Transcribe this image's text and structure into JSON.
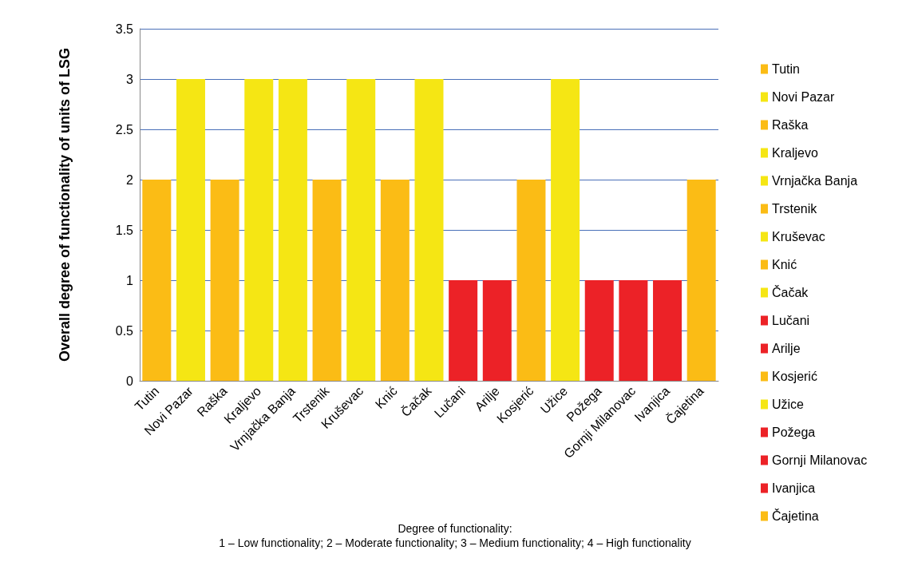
{
  "chart_data": {
    "type": "bar",
    "ylabel": "Overall degree of functionality of units of LSG",
    "categories": [
      "Tutin",
      "Novi Pazar",
      "Raška",
      "Kraljevo",
      "Vrnjačka Banja",
      "Trstenik",
      "Kruševac",
      "Knić",
      "Čačak",
      "Lučani",
      "Arilje",
      "Kosjerić",
      "Užice",
      "Požega",
      "Gornji Milanovac",
      "Ivanjica",
      "Čajetina"
    ],
    "series": [
      {
        "name": "Tutin",
        "color": "#fbbc15",
        "values": [
          2,
          null,
          null,
          null,
          null,
          null,
          null,
          null,
          null,
          null,
          null,
          null,
          null,
          null,
          null,
          null,
          null
        ]
      },
      {
        "name": "Novi Pazar",
        "color": "#f5e614",
        "values": [
          null,
          3,
          null,
          null,
          null,
          null,
          null,
          null,
          null,
          null,
          null,
          null,
          null,
          null,
          null,
          null,
          null
        ]
      },
      {
        "name": "Raška",
        "color": "#fbbc15",
        "values": [
          null,
          null,
          2,
          null,
          null,
          null,
          null,
          null,
          null,
          null,
          null,
          null,
          null,
          null,
          null,
          null,
          null
        ]
      },
      {
        "name": "Kraljevo",
        "color": "#f5e614",
        "values": [
          null,
          null,
          null,
          3,
          null,
          null,
          null,
          null,
          null,
          null,
          null,
          null,
          null,
          null,
          null,
          null,
          null
        ]
      },
      {
        "name": "Vrnjačka Banja",
        "color": "#f5e614",
        "values": [
          null,
          null,
          null,
          null,
          3,
          null,
          null,
          null,
          null,
          null,
          null,
          null,
          null,
          null,
          null,
          null,
          null
        ]
      },
      {
        "name": "Trstenik",
        "color": "#fbbc15",
        "values": [
          null,
          null,
          null,
          null,
          null,
          2,
          null,
          null,
          null,
          null,
          null,
          null,
          null,
          null,
          null,
          null,
          null
        ]
      },
      {
        "name": "Kruševac",
        "color": "#f5e614",
        "values": [
          null,
          null,
          null,
          null,
          null,
          null,
          3,
          null,
          null,
          null,
          null,
          null,
          null,
          null,
          null,
          null,
          null
        ]
      },
      {
        "name": "Knić",
        "color": "#fbbc15",
        "values": [
          null,
          null,
          null,
          null,
          null,
          null,
          null,
          2,
          null,
          null,
          null,
          null,
          null,
          null,
          null,
          null,
          null
        ]
      },
      {
        "name": "Čačak",
        "color": "#f5e614",
        "values": [
          null,
          null,
          null,
          null,
          null,
          null,
          null,
          null,
          3,
          null,
          null,
          null,
          null,
          null,
          null,
          null,
          null
        ]
      },
      {
        "name": "Lučani",
        "color": "#ec2227",
        "values": [
          null,
          null,
          null,
          null,
          null,
          null,
          null,
          null,
          null,
          1,
          null,
          null,
          null,
          null,
          null,
          null,
          null
        ]
      },
      {
        "name": "Arilje",
        "color": "#ec2227",
        "values": [
          null,
          null,
          null,
          null,
          null,
          null,
          null,
          null,
          null,
          null,
          1,
          null,
          null,
          null,
          null,
          null,
          null
        ]
      },
      {
        "name": "Kosjerić",
        "color": "#fbbc15",
        "values": [
          null,
          null,
          null,
          null,
          null,
          null,
          null,
          null,
          null,
          null,
          null,
          2,
          null,
          null,
          null,
          null,
          null
        ]
      },
      {
        "name": "Užice",
        "color": "#f5e614",
        "values": [
          null,
          null,
          null,
          null,
          null,
          null,
          null,
          null,
          null,
          null,
          null,
          null,
          3,
          null,
          null,
          null,
          null
        ]
      },
      {
        "name": "Požega",
        "color": "#ec2227",
        "values": [
          null,
          null,
          null,
          null,
          null,
          null,
          null,
          null,
          null,
          null,
          null,
          null,
          null,
          1,
          null,
          null,
          null
        ]
      },
      {
        "name": "Gornji Milanovac",
        "color": "#ec2227",
        "values": [
          null,
          null,
          null,
          null,
          null,
          null,
          null,
          null,
          null,
          null,
          null,
          null,
          null,
          null,
          1,
          null,
          null
        ]
      },
      {
        "name": "Ivanjica",
        "color": "#ec2227",
        "values": [
          null,
          null,
          null,
          null,
          null,
          null,
          null,
          null,
          null,
          null,
          null,
          null,
          null,
          null,
          null,
          1,
          null
        ]
      },
      {
        "name": "Čajetina",
        "color": "#fbbc15",
        "values": [
          null,
          null,
          null,
          null,
          null,
          null,
          null,
          null,
          null,
          null,
          null,
          null,
          null,
          null,
          null,
          null,
          2
        ]
      }
    ],
    "ylim": [
      0,
      3.5
    ],
    "yticks": [
      0,
      0.5,
      1,
      1.5,
      2,
      2.5,
      3,
      3.5
    ],
    "grid": "y",
    "legend": "right",
    "annotations": [
      "Degree of functionality:",
      "1 – Low functionality; 2 – Moderate functionality; 3 – Medium functionality; 4 – High functionality"
    ]
  }
}
